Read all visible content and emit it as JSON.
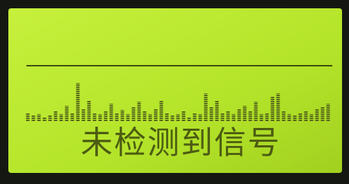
{
  "screen": {
    "message": "未检测到信号"
  }
}
